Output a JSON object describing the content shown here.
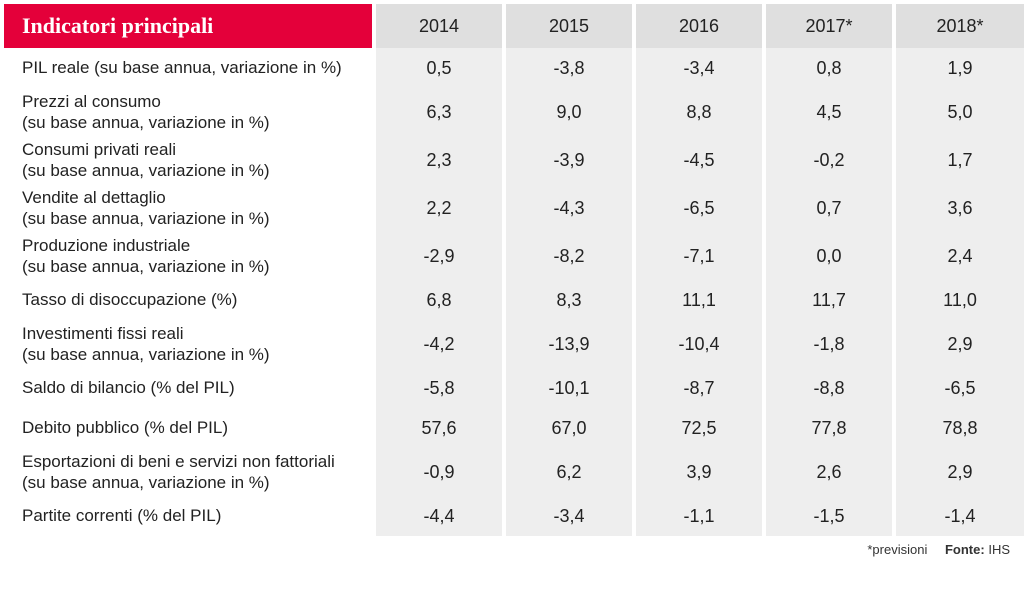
{
  "colors": {
    "header_bg": "#e4003a",
    "header_text": "#ffffff",
    "col_header_bg": "#dfdfdf",
    "cell_bg": "#eeeeee",
    "label_bg": "#ffffff",
    "text": "#222222",
    "sep": "#ffffff"
  },
  "title": "Indicatori principali",
  "years": [
    "2014",
    "2015",
    "2016",
    "2017*",
    "2018*"
  ],
  "rows": [
    {
      "label": "PIL reale (su base annua, variazione in %)",
      "v": [
        "0,5",
        "-3,8",
        "-3,4",
        "0,8",
        "1,9"
      ],
      "short": true
    },
    {
      "label": "Prezzi al consumo\n(su base annua, variazione in %)",
      "v": [
        "6,3",
        "9,0",
        "8,8",
        "4,5",
        "5,0"
      ]
    },
    {
      "label": "Consumi privati reali\n(su base annua, variazione in %)",
      "v": [
        "2,3",
        "-3,9",
        "-4,5",
        "-0,2",
        "1,7"
      ]
    },
    {
      "label": "Vendite al dettaglio\n(su base annua, variazione in %)",
      "v": [
        "2,2",
        "-4,3",
        "-6,5",
        "0,7",
        "3,6"
      ]
    },
    {
      "label": "Produzione industriale\n(su base annua, variazione in %)",
      "v": [
        "-2,9",
        "-8,2",
        "-7,1",
        "0,0",
        "2,4"
      ]
    },
    {
      "label": "Tasso di disoccupazione (%)",
      "v": [
        "6,8",
        "8,3",
        "11,1",
        "11,7",
        "11,0"
      ],
      "short": true
    },
    {
      "label": "Investimenti fissi reali\n(su base annua, variazione in %)",
      "v": [
        "-4,2",
        "-13,9",
        "-10,4",
        "-1,8",
        "2,9"
      ]
    },
    {
      "label": "Saldo di bilancio (% del PIL)",
      "v": [
        "-5,8",
        "-10,1",
        "-8,7",
        "-8,8",
        "-6,5"
      ],
      "short": true
    },
    {
      "label": "Debito pubblico (% del PIL)",
      "v": [
        "57,6",
        "67,0",
        "72,5",
        "77,8",
        "78,8"
      ],
      "short": true
    },
    {
      "label": "Esportazioni di beni e servizi non fattoriali\n(su base annua, variazione in %)",
      "v": [
        "-0,9",
        "6,2",
        "3,9",
        "2,6",
        "2,9"
      ]
    },
    {
      "label": "Partite correnti (% del PIL)",
      "v": [
        "-4,4",
        "-3,4",
        "-1,1",
        "-1,5",
        "-1,4"
      ],
      "short": true
    }
  ],
  "footer": {
    "note": "*previsioni",
    "source_label": "Fonte:",
    "source_value": "IHS"
  }
}
